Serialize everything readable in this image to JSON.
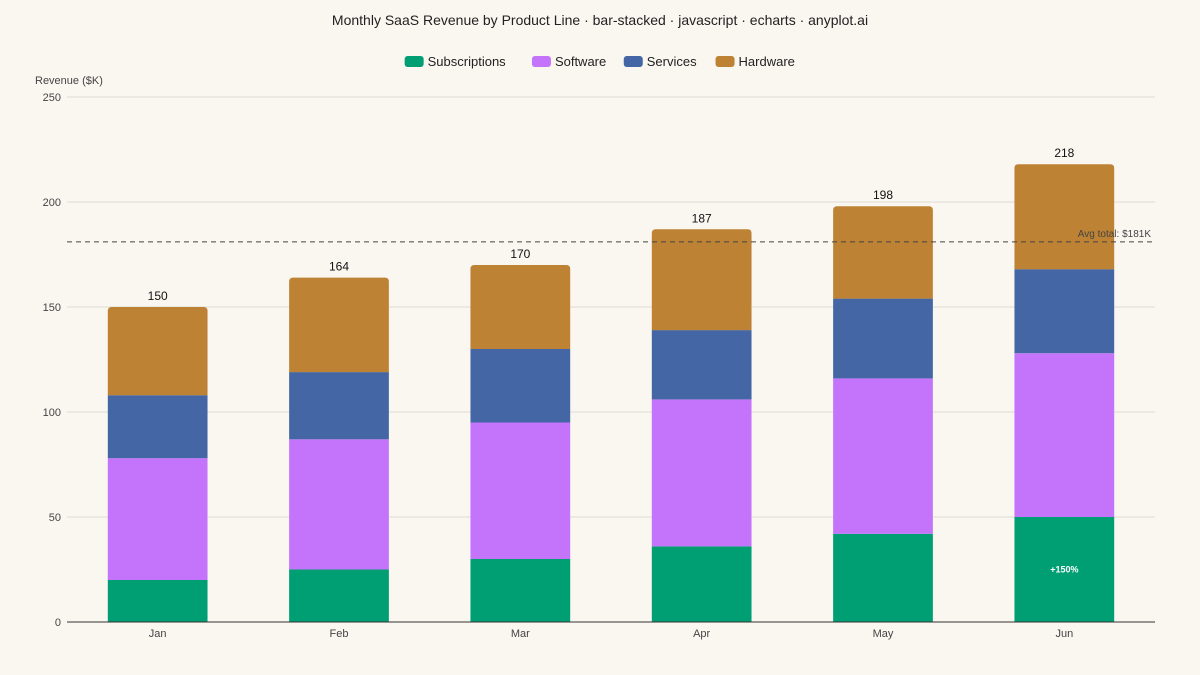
{
  "chart_data": {
    "type": "bar",
    "stacked": true,
    "title": "Monthly SaaS Revenue by Product Line · bar-stacked · javascript · echarts · anyplot.ai",
    "ylabel": "Revenue ($K)",
    "xlabel": "",
    "ylim": [
      0,
      250
    ],
    "yticks": [
      0,
      50,
      100,
      150,
      200,
      250
    ],
    "grid": true,
    "legend_position": "top-center",
    "categories": [
      "Jan",
      "Feb",
      "Mar",
      "Apr",
      "May",
      "Jun"
    ],
    "series": [
      {
        "name": "Subscriptions",
        "color": "#009E73",
        "values": [
          20,
          25,
          30,
          36,
          42,
          50
        ]
      },
      {
        "name": "Software",
        "color": "#C474FB",
        "values": [
          58,
          62,
          65,
          70,
          74,
          78
        ]
      },
      {
        "name": "Services",
        "color": "#4466A4",
        "values": [
          30,
          32,
          35,
          33,
          38,
          40
        ]
      },
      {
        "name": "Hardware",
        "color": "#BD8233",
        "values": [
          42,
          45,
          40,
          48,
          44,
          50
        ]
      }
    ],
    "totals": [
      "150",
      "164",
      "170",
      "187",
      "198",
      "218"
    ],
    "average_line": {
      "value": 181,
      "label": "Avg total: $181K"
    },
    "annotation": {
      "category": "Jun",
      "series": "Subscriptions",
      "text": "+150%"
    }
  }
}
